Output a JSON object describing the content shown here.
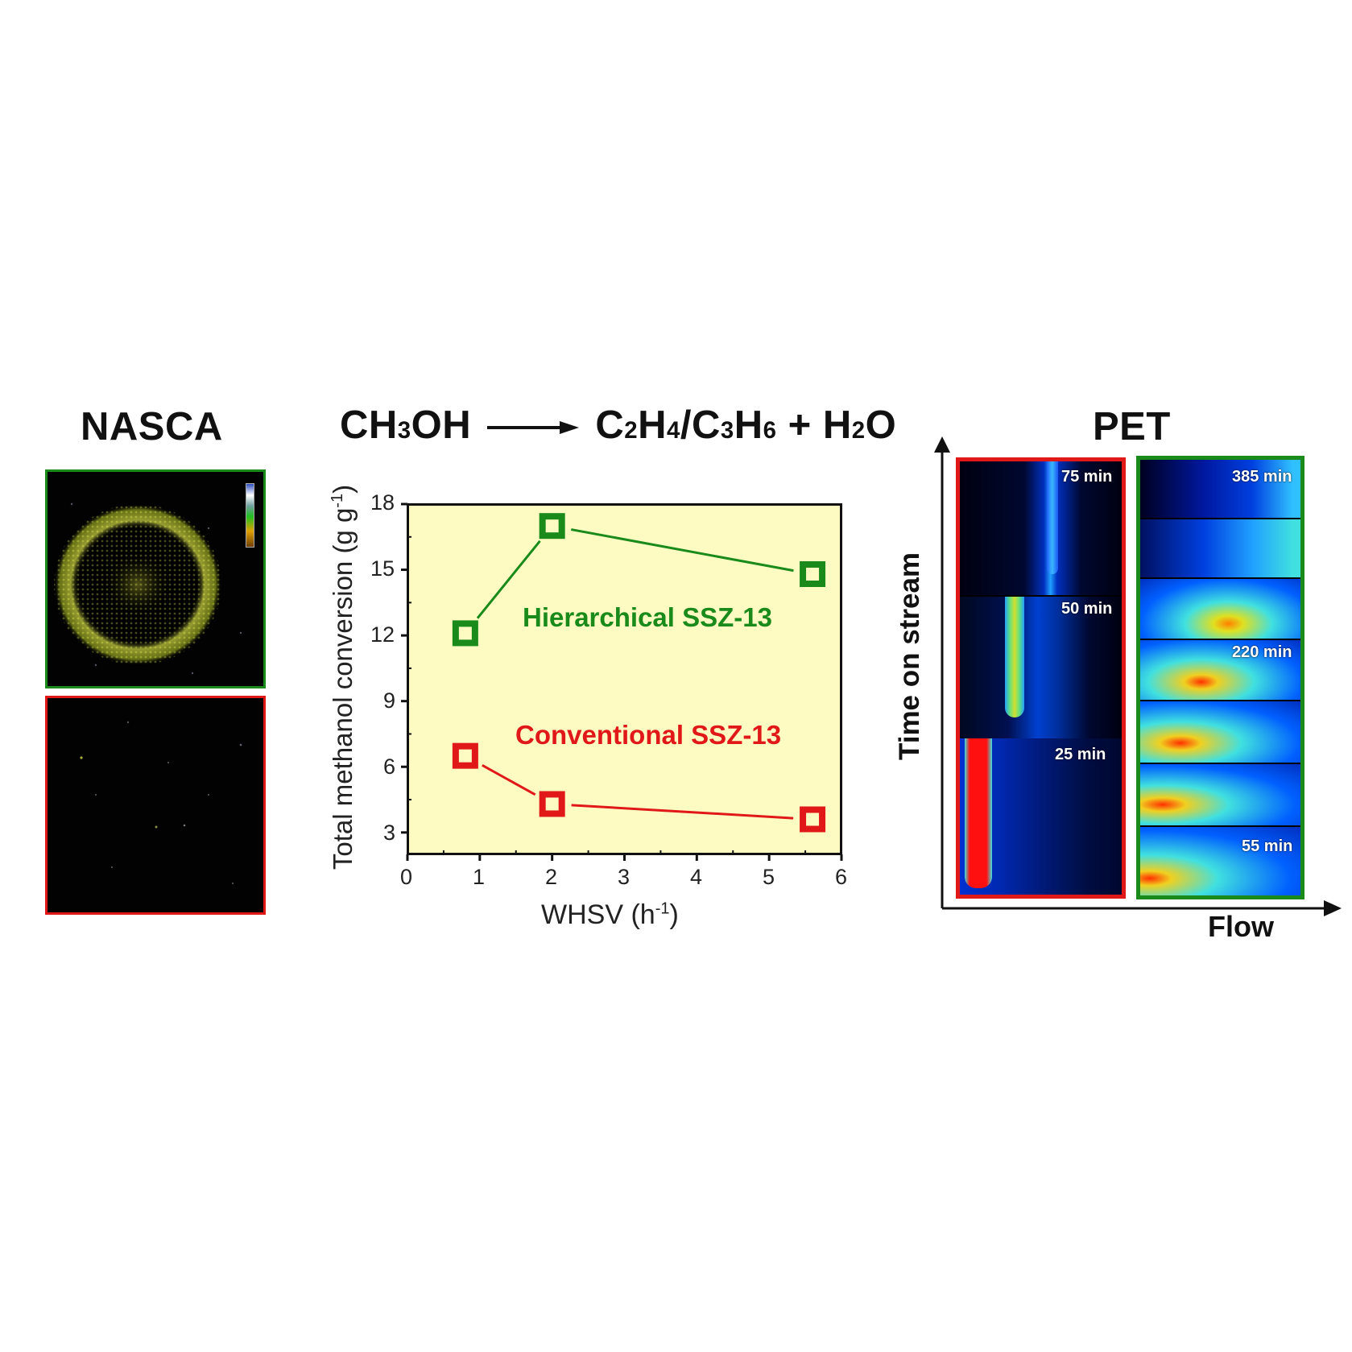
{
  "titles": {
    "nasca": "NASCA",
    "reaction": {
      "reactant_parts": [
        "CH",
        "3",
        "OH"
      ],
      "product_parts": [
        "C",
        "2",
        "H",
        "4",
        "/C",
        "3",
        "H",
        "6",
        " + H",
        "2",
        "O"
      ]
    },
    "pet": "PET"
  },
  "nasca": {
    "panels": [
      {
        "name": "hierarchical",
        "border_color": "#1a8a1a"
      },
      {
        "name": "conventional",
        "border_color": "#e01818"
      }
    ],
    "colorbar_stops": [
      "#3050c0",
      "#ffffff",
      "#70a0a0",
      "#20c020",
      "#e0a000",
      "#704000"
    ]
  },
  "chart_data": {
    "type": "line",
    "title": "",
    "xlabel": "WHSV (h-1)",
    "ylabel": "Total methanol conversion (g g-1)",
    "xlim": [
      0,
      6
    ],
    "ylim": [
      2,
      18
    ],
    "xticks": [
      0,
      1,
      2,
      3,
      4,
      5,
      6
    ],
    "yticks": [
      3,
      6,
      9,
      12,
      15,
      18
    ],
    "background": "#fdfbc2",
    "grid": false,
    "x": [
      0.8,
      2.0,
      5.6
    ],
    "series": [
      {
        "name": "Hierarchical SSZ-13",
        "color": "#1a8a1a",
        "values": [
          12.1,
          17.0,
          14.8
        ],
        "marker": "open-square"
      },
      {
        "name": "Conventional SSZ-13",
        "color": "#e01818",
        "values": [
          6.5,
          4.3,
          3.6
        ],
        "marker": "open-square"
      }
    ],
    "annotations": [
      {
        "text": "Hierarchical SSZ-13",
        "color": "#1a8a1a"
      },
      {
        "text": "Conventional SSZ-13",
        "color": "#e01818"
      }
    ]
  },
  "axis_text": {
    "xlabel_main": "WHSV (h",
    "xlabel_sup": "-1",
    "xlabel_end": ")",
    "ylabel_main": "Total methanol conversion (g g",
    "ylabel_sup": "-1",
    "ylabel_end": ")"
  },
  "pet": {
    "y_axis_label": "Time on stream",
    "x_axis_label": "Flow",
    "conventional": {
      "border_color": "#e01818",
      "labels": [
        "75 min",
        "50 min",
        "25 min"
      ]
    },
    "hierarchical": {
      "border_color": "#1a8a1a",
      "labels": [
        "385 min",
        "220 min",
        "55 min"
      ]
    }
  }
}
